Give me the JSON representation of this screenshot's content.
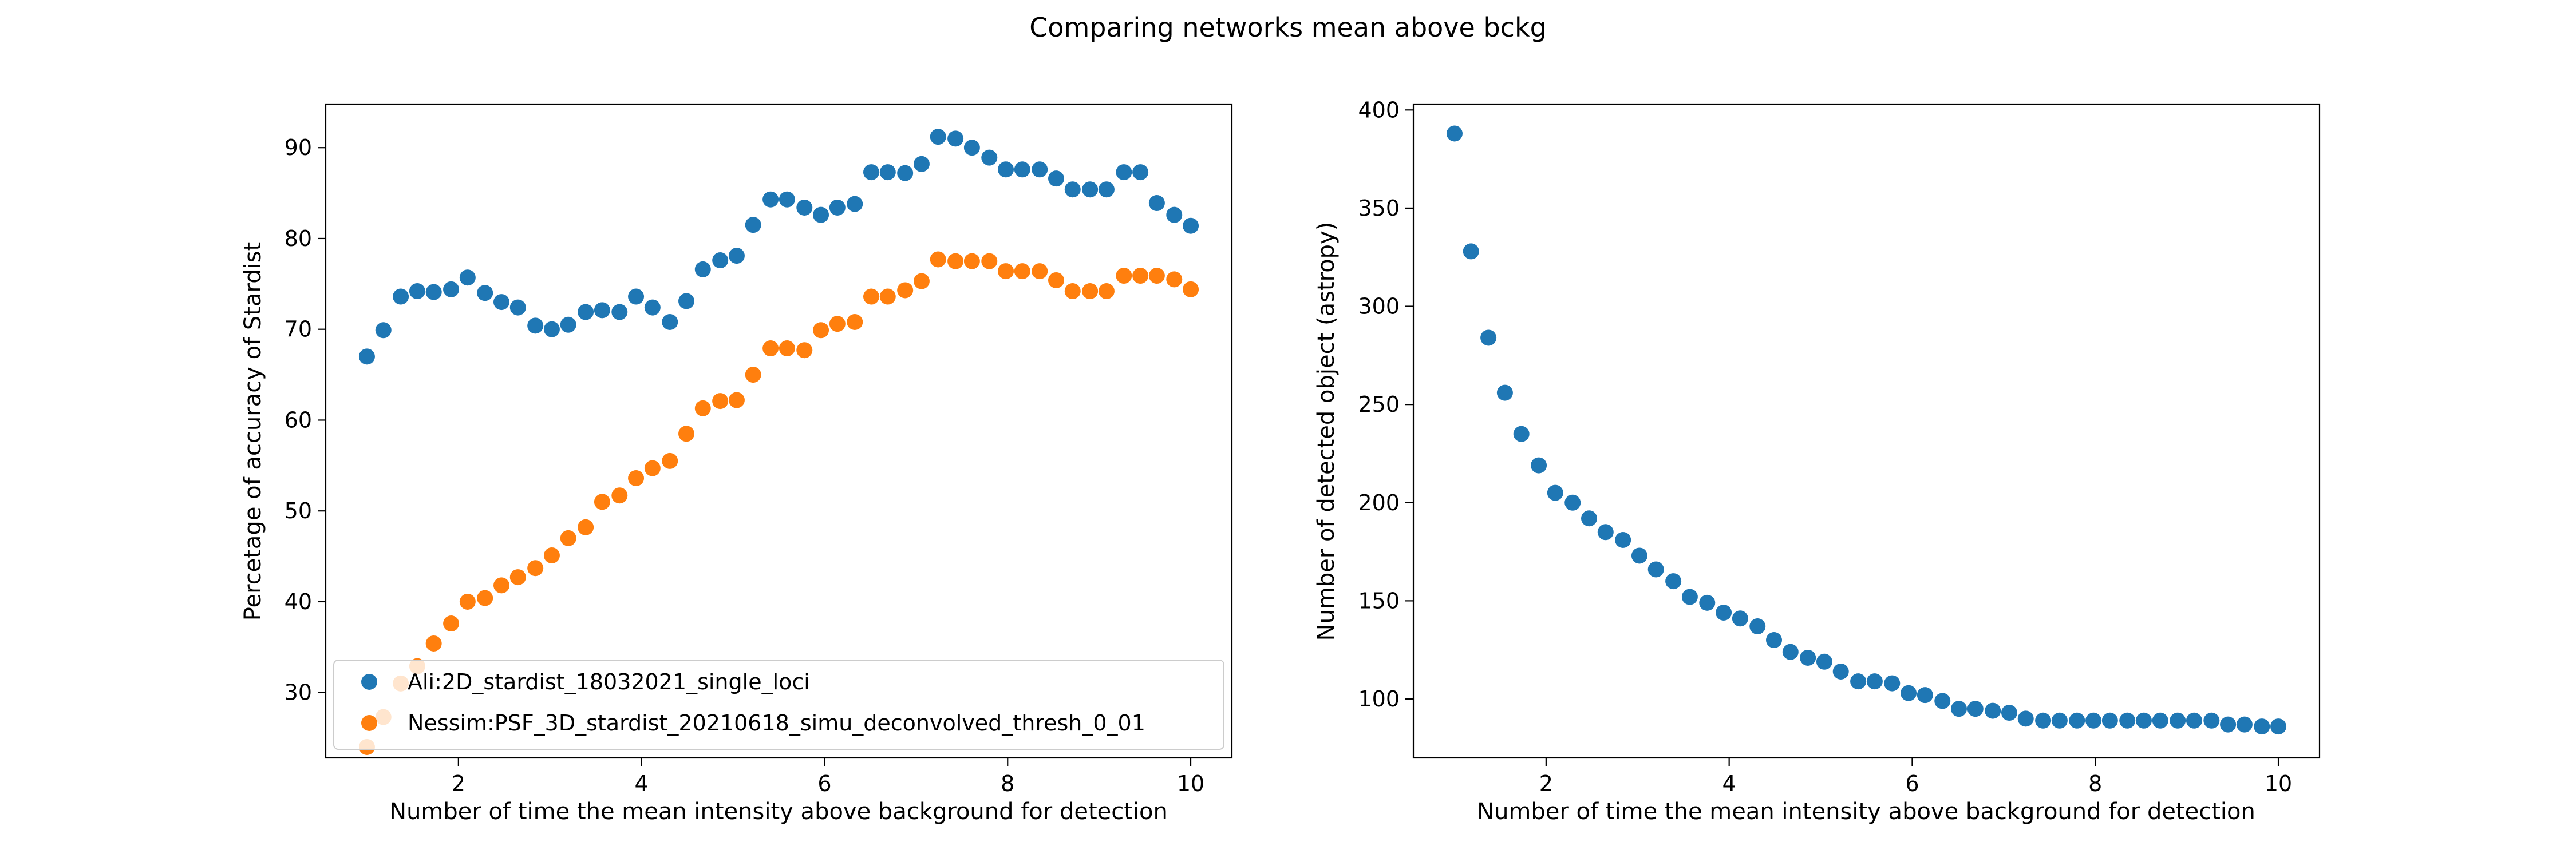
{
  "figure": {
    "suptitle": "Comparing networks mean above bckg"
  },
  "colors": {
    "series_blue": "#1f77b4",
    "series_orange": "#ff7f0e",
    "axis": "#000000",
    "legend_border": "#cccccc"
  },
  "chart_data": [
    {
      "type": "scatter",
      "title": "",
      "xlabel": "Number of time the mean intensity above background for detection",
      "ylabel": "Percetage of accuracy of Stardist",
      "xlim": [
        0.55,
        10.45
      ],
      "ylim": [
        22.8,
        94.8
      ],
      "xticks": [
        2,
        4,
        6,
        8,
        10
      ],
      "yticks": [
        30,
        40,
        50,
        60,
        70,
        80,
        90
      ],
      "legend_placement": "lower-left",
      "grid": false,
      "x": [
        1.0,
        1.18,
        1.37,
        1.55,
        1.73,
        1.92,
        2.1,
        2.29,
        2.47,
        2.65,
        2.84,
        3.02,
        3.2,
        3.39,
        3.57,
        3.76,
        3.94,
        4.12,
        4.31,
        4.49,
        4.67,
        4.86,
        5.04,
        5.22,
        5.41,
        5.59,
        5.78,
        5.96,
        6.14,
        6.33,
        6.51,
        6.69,
        6.88,
        7.06,
        7.24,
        7.43,
        7.61,
        7.8,
        7.98,
        8.16,
        8.35,
        8.53,
        8.71,
        8.9,
        9.08,
        9.27,
        9.45,
        9.63,
        9.82,
        10.0
      ],
      "series": [
        {
          "name": "Ali:2D_stardist_18032021_single_loci",
          "color": "#1f77b4",
          "values": [
            67.0,
            69.9,
            73.6,
            74.2,
            74.1,
            74.4,
            75.7,
            74.0,
            73.0,
            72.4,
            70.4,
            70.0,
            70.5,
            71.9,
            72.1,
            71.9,
            73.6,
            72.4,
            70.8,
            73.1,
            76.6,
            77.6,
            78.1,
            81.5,
            84.3,
            84.3,
            83.4,
            82.6,
            83.4,
            83.8,
            87.3,
            87.3,
            87.2,
            88.2,
            91.2,
            91.0,
            90.0,
            88.9,
            87.6,
            87.6,
            87.6,
            86.6,
            85.4,
            85.4,
            85.4,
            87.3,
            87.3,
            83.9,
            82.6,
            81.4
          ]
        },
        {
          "name": "Nessim:PSF_3D_stardist_20210618_simu_deconvolved_thresh_0_01",
          "color": "#ff7f0e",
          "values": [
            24.0,
            27.3,
            31.0,
            32.9,
            35.4,
            37.6,
            40.0,
            40.4,
            41.8,
            42.7,
            43.7,
            45.1,
            47.0,
            48.2,
            51.0,
            51.7,
            53.6,
            54.7,
            55.5,
            58.5,
            61.3,
            62.1,
            62.2,
            65.0,
            67.9,
            67.9,
            67.7,
            69.9,
            70.6,
            70.8,
            73.6,
            73.6,
            74.3,
            75.3,
            77.7,
            77.5,
            77.5,
            77.5,
            76.4,
            76.4,
            76.4,
            75.4,
            74.2,
            74.2,
            74.2,
            75.9,
            75.9,
            75.9,
            75.5,
            74.4
          ]
        }
      ]
    },
    {
      "type": "scatter",
      "title": "",
      "xlabel": "Number of time the mean intensity above background for detection",
      "ylabel": "Number of detected object (astropy)",
      "xlim": [
        0.55,
        10.45
      ],
      "ylim": [
        70,
        403
      ],
      "xticks": [
        2,
        4,
        6,
        8,
        10
      ],
      "yticks": [
        100,
        150,
        200,
        250,
        300,
        350,
        400
      ],
      "legend_placement": "none",
      "grid": false,
      "x": [
        1.0,
        1.18,
        1.37,
        1.55,
        1.73,
        1.92,
        2.1,
        2.29,
        2.47,
        2.65,
        2.84,
        3.02,
        3.2,
        3.39,
        3.57,
        3.76,
        3.94,
        4.12,
        4.31,
        4.49,
        4.67,
        4.86,
        5.04,
        5.22,
        5.41,
        5.59,
        5.78,
        5.96,
        6.14,
        6.33,
        6.51,
        6.69,
        6.88,
        7.06,
        7.24,
        7.43,
        7.61,
        7.8,
        7.98,
        8.16,
        8.35,
        8.53,
        8.71,
        8.9,
        9.08,
        9.27,
        9.45,
        9.63,
        9.82,
        10.0
      ],
      "series": [
        {
          "name": "",
          "color": "#1f77b4",
          "values": [
            388,
            328,
            284,
            256,
            235,
            219,
            205,
            200,
            192,
            185,
            181,
            173,
            166,
            160,
            152,
            149,
            144,
            141,
            137,
            130,
            124,
            121,
            119,
            114,
            109,
            109,
            108,
            103,
            102,
            99,
            95,
            95,
            94,
            93,
            90,
            89,
            89,
            89,
            89,
            89,
            89,
            89,
            89,
            89,
            89,
            89,
            87,
            87,
            86,
            86
          ]
        }
      ]
    }
  ]
}
